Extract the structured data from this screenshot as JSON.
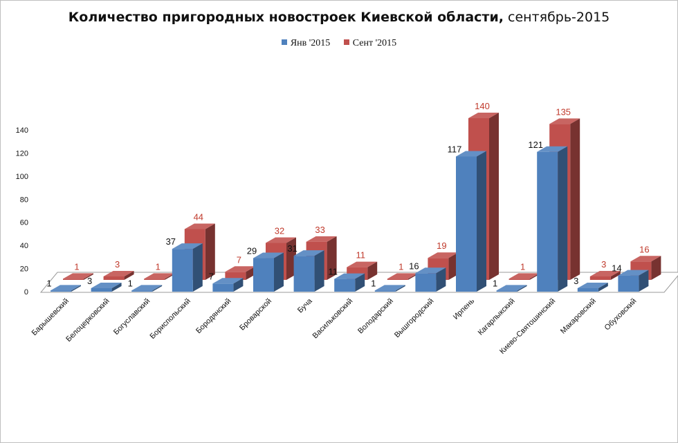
{
  "chart_data": {
    "type": "bar",
    "title_bold": "Количество пригородных новостроек Киевской области,",
    "title_rest": " сентябрь-2015",
    "categories": [
      "Барышевский",
      "Белоцерковский",
      "Богуславский",
      "Бориспольский",
      "Бородянский",
      "Броварской",
      "Буча",
      "Васильковский",
      "Володарский",
      "Вышгородский",
      "Ирпень",
      "Кагарлыкский",
      "Киево-Святошинский",
      "Макаровский",
      "Обуховский"
    ],
    "series": [
      {
        "name": "Янв '2015",
        "color": "#4f81bd",
        "values": [
          1,
          3,
          1,
          37,
          7,
          29,
          31,
          11,
          1,
          16,
          117,
          1,
          121,
          3,
          14
        ]
      },
      {
        "name": "Сент '2015",
        "color": "#c0504d",
        "values": [
          1,
          3,
          1,
          44,
          7,
          32,
          33,
          11,
          1,
          19,
          140,
          1,
          135,
          3,
          16
        ]
      }
    ],
    "yticks": [
      "0",
      "20",
      "40",
      "60",
      "80",
      "100",
      "120",
      "140"
    ],
    "ylim": [
      0,
      140
    ],
    "xlabel": "",
    "ylabel": ""
  }
}
